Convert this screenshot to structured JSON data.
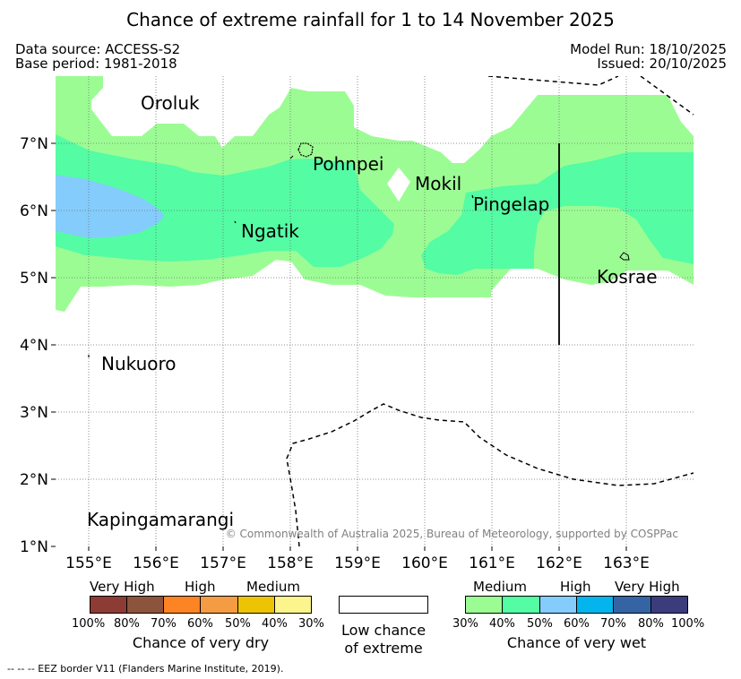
{
  "title": "Chance of extreme rainfall for 1 to 14 November 2025",
  "meta": {
    "data_source": "Data source: ACCESS-S2",
    "base_period": "Base period: 1981-2018",
    "model_run": "Model Run: 18/10/2025",
    "issued": "Issued: 20/10/2025"
  },
  "map": {
    "lat_labels": [
      "7°N",
      "6°N",
      "5°N",
      "4°N",
      "3°N",
      "2°N",
      "1°N"
    ],
    "lon_labels": [
      "155°E",
      "156°E",
      "157°E",
      "158°E",
      "159°E",
      "160°E",
      "161°E",
      "162°E",
      "163°E"
    ],
    "places": {
      "oroluk": "Oroluk",
      "pohnpei": "Pohnpei",
      "mokil": "Mokil",
      "pingelap": "Pingelap",
      "ngatik": "Ngatik",
      "kosrae": "Kosrae",
      "nukuoro": "Nukuoro",
      "kapingamarangi": "Kapingamarangi"
    },
    "copyright": "© Commonwealth of Australia 2025, Bureau of Meteorology, supported by COSPPac",
    "colors": {
      "wet_30": "#9cfc94",
      "wet_40": "#54fca4",
      "wet_50": "#84ccfc",
      "wet_60": "#04b4ec",
      "wet_70": "#3464a4",
      "wet_80": "#3c3c7c",
      "dry_100": "#8c3c34",
      "dry_80": "#8c543c",
      "dry_70": "#fc8424",
      "dry_60": "#f49c44",
      "dry_50": "#ecc404",
      "dry_40": "#fcf48c"
    }
  },
  "legend": {
    "dry": {
      "labels": [
        "Very High",
        "High",
        "Medium"
      ],
      "ticks": [
        "100%",
        "80%",
        "70%",
        "60%",
        "50%",
        "40%",
        "30%"
      ],
      "title": "Chance of very dry"
    },
    "low": {
      "title_line1": "Low chance",
      "title_line2": "of extreme"
    },
    "wet": {
      "labels": [
        "Medium",
        "High",
        "Very High"
      ],
      "ticks": [
        "30%",
        "40%",
        "50%",
        "60%",
        "70%",
        "80%",
        "100%"
      ],
      "title": "Chance of very wet"
    }
  },
  "footer": "-- -- -- EEZ border V11 (Flanders Marine Institute, 2019)."
}
